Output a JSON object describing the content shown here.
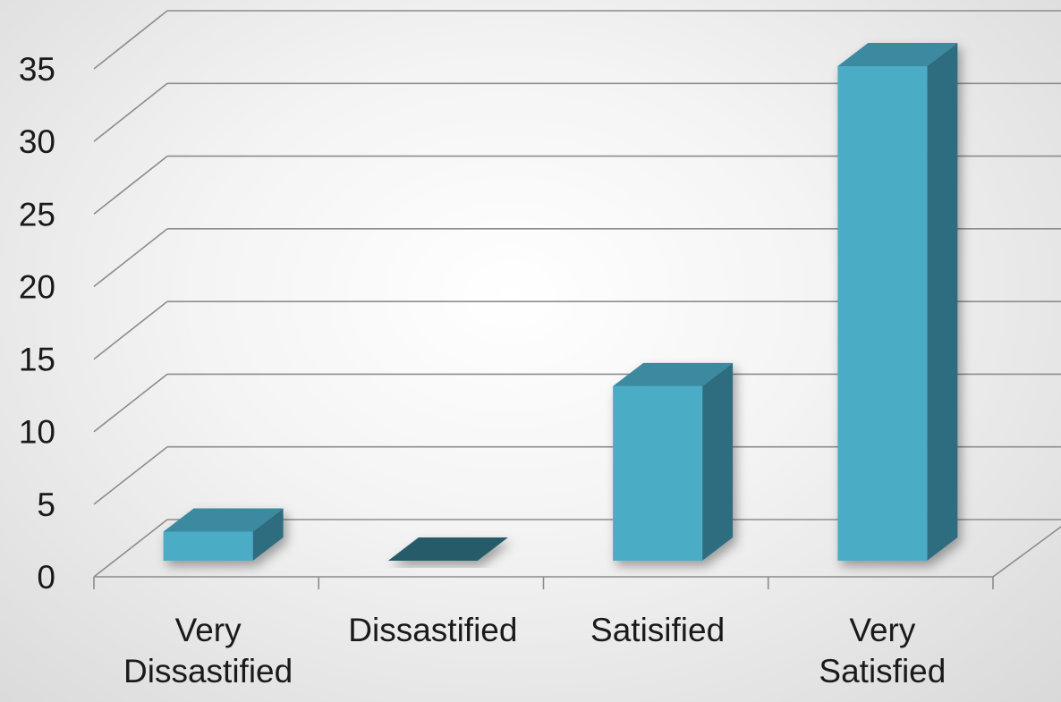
{
  "chart_data": {
    "type": "bar",
    "title": "",
    "xlabel": "",
    "ylabel": "",
    "categories": [
      [
        "Very",
        "Dissastified"
      ],
      [
        "Dissastified"
      ],
      [
        "Satisified"
      ],
      [
        "Very",
        "Satisfied"
      ]
    ],
    "values": [
      2,
      0,
      12,
      34
    ],
    "ylim": [
      0,
      35
    ],
    "yticks": [
      0,
      5,
      10,
      15,
      20,
      25,
      30,
      35
    ],
    "grid": true,
    "legend": "none",
    "style": "3d-column"
  },
  "colors": {
    "bar_front": "#4bacc6",
    "bar_top": "#3a8aa0",
    "bar_side": "#2f6d80",
    "bar_zero": "#255b6b",
    "gridline": "#8c8c8c",
    "axis": "#8c8c8c"
  }
}
